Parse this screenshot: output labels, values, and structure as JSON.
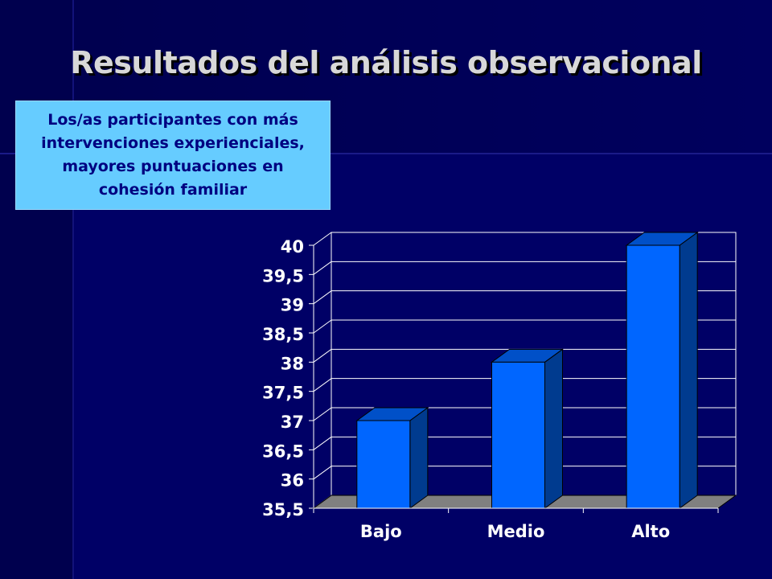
{
  "title": "Resultados del análisis observacional",
  "note": {
    "lines": [
      "Los/as participantes con más",
      "intervenciones experienciales,",
      "mayores puntuaciones en",
      "cohesión familiar"
    ]
  },
  "colors": {
    "background": "#000066",
    "bar_front": "#0066ff",
    "bar_side": "#003b8f",
    "bar_top": "#0050c8",
    "floor": "#808080",
    "gridline": "#ffffff",
    "label": "#ffffff",
    "note_bg": "#66ccff",
    "note_text": "#000080"
  },
  "chart_data": {
    "type": "bar",
    "categories": [
      "Bajo",
      "Medio",
      "Alto"
    ],
    "values": [
      37,
      38,
      40
    ],
    "ylim": [
      35.5,
      40
    ],
    "yticks": [
      "40",
      "39,5",
      "39",
      "38,5",
      "38",
      "37,5",
      "37",
      "36,5",
      "36",
      "35,5"
    ],
    "grid": true,
    "three_d": true
  }
}
